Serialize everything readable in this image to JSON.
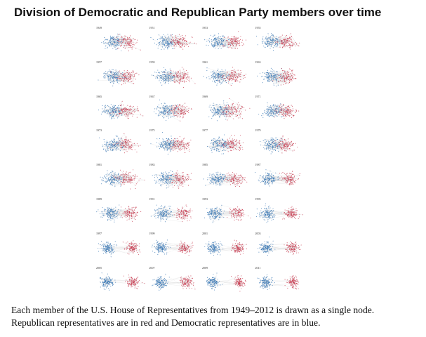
{
  "title": "Division of Democratic and Republican Party members over time",
  "caption": {
    "line1": "Each member of the U.S. House of Representatives from 1949–2012 is drawn as a single node.",
    "line2": "Republican representatives are in red and Democratic representatives are in blue."
  },
  "colors": {
    "democrat": "#3a78b5",
    "republican": "#c8384e",
    "edge": "#555555"
  },
  "panels": [
    {
      "year": "1949",
      "separation": 0.3
    },
    {
      "year": "1951",
      "separation": 0.32
    },
    {
      "year": "1953",
      "separation": 0.4
    },
    {
      "year": "1955",
      "separation": 0.34
    },
    {
      "year": "1957",
      "separation": 0.26
    },
    {
      "year": "1959",
      "separation": 0.28
    },
    {
      "year": "1961",
      "separation": 0.3
    },
    {
      "year": "1963",
      "separation": 0.32
    },
    {
      "year": "1965",
      "separation": 0.3
    },
    {
      "year": "1967",
      "separation": 0.26
    },
    {
      "year": "1969",
      "separation": 0.22
    },
    {
      "year": "1971",
      "separation": 0.26
    },
    {
      "year": "1973",
      "separation": 0.24
    },
    {
      "year": "1975",
      "separation": 0.26
    },
    {
      "year": "1977",
      "separation": 0.28
    },
    {
      "year": "1979",
      "separation": 0.3
    },
    {
      "year": "1981",
      "separation": 0.3
    },
    {
      "year": "1983",
      "separation": 0.36
    },
    {
      "year": "1985",
      "separation": 0.46
    },
    {
      "year": "1987",
      "separation": 0.56
    },
    {
      "year": "1989",
      "separation": 0.56
    },
    {
      "year": "1991",
      "separation": 0.6
    },
    {
      "year": "1993",
      "separation": 0.68
    },
    {
      "year": "1995",
      "separation": 0.76
    },
    {
      "year": "1997",
      "separation": 0.82
    },
    {
      "year": "1999",
      "separation": 0.8
    },
    {
      "year": "2001",
      "separation": 0.84
    },
    {
      "year": "2003",
      "separation": 0.88
    },
    {
      "year": "2005",
      "separation": 0.9
    },
    {
      "year": "2007",
      "separation": 0.88
    },
    {
      "year": "2009",
      "separation": 0.92
    },
    {
      "year": "2011",
      "separation": 0.94
    }
  ]
}
